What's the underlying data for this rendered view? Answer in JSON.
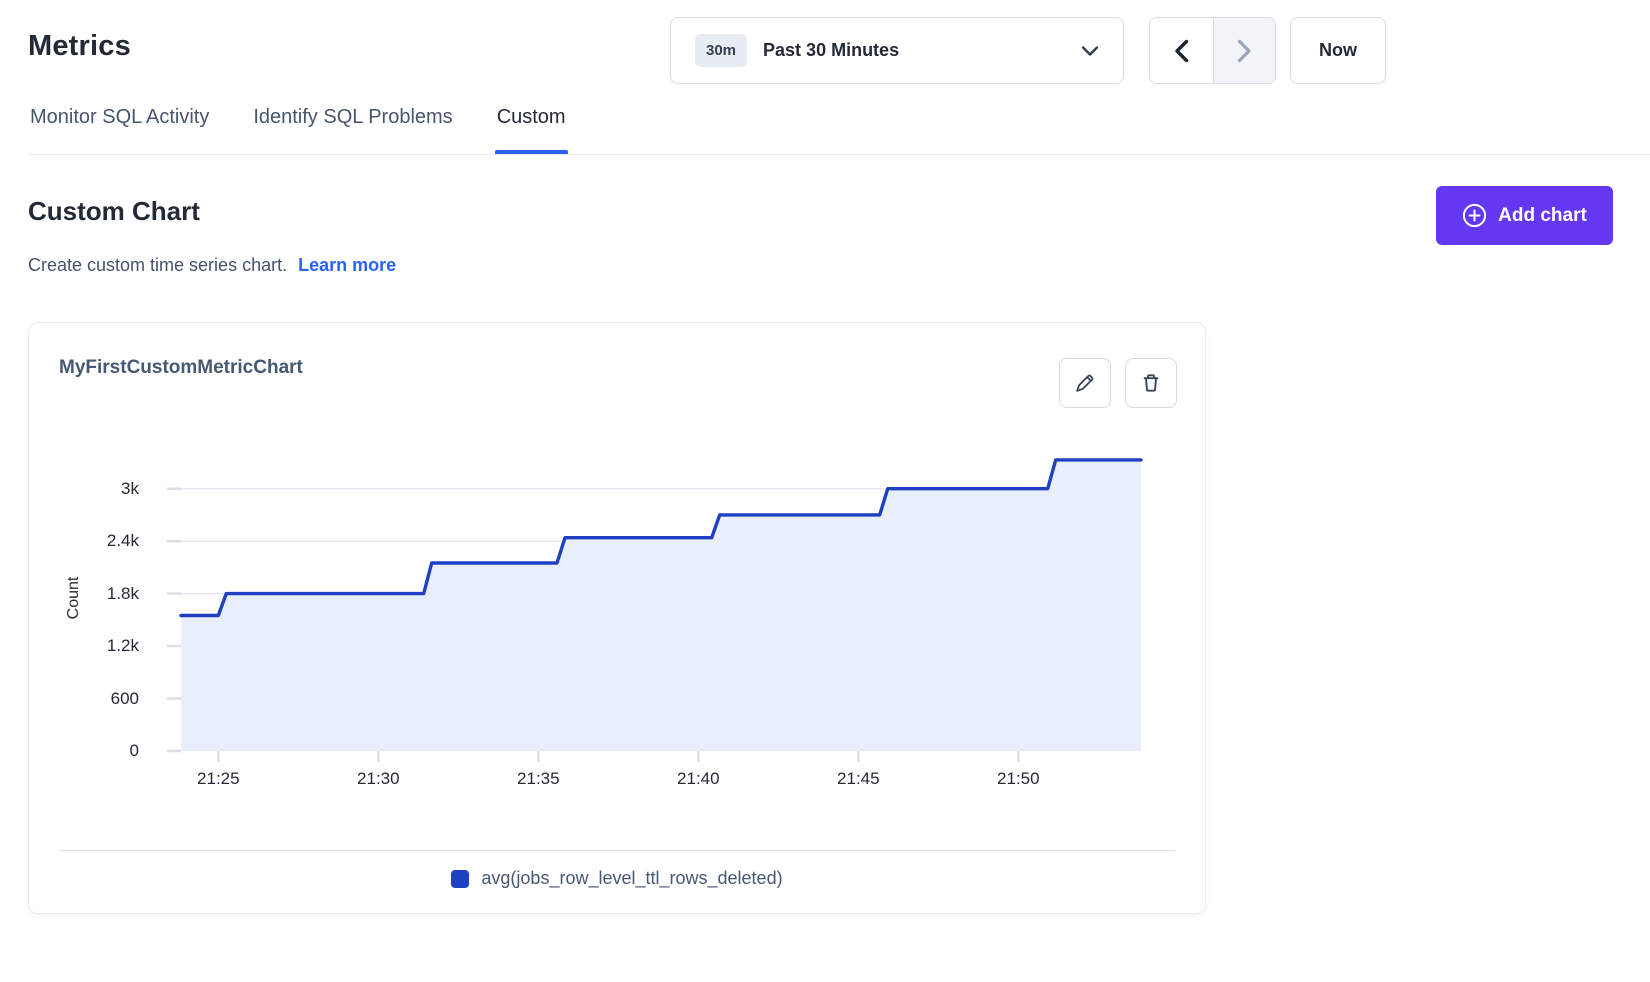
{
  "header": {
    "title": "Metrics"
  },
  "time_controls": {
    "range_badge": "30m",
    "range_label": "Past 30 Minutes",
    "now_label": "Now",
    "prev_enabled": true,
    "next_enabled": false
  },
  "tabs": [
    {
      "label": "Monitor SQL Activity",
      "active": false
    },
    {
      "label": "Identify SQL Problems",
      "active": false
    },
    {
      "label": "Custom",
      "active": true
    }
  ],
  "section": {
    "title": "Custom Chart",
    "subtitle": "Create custom time series chart.",
    "learn_more_label": "Learn more",
    "add_chart_label": "Add chart"
  },
  "chart_card": {
    "title": "MyFirstCustomMetricChart"
  },
  "colors": {
    "accent_purple": "#6438f0",
    "link_blue": "#2962ff",
    "series_line": "#1e40c2",
    "series_fill": "#e9eefb",
    "gridline": "#e3e7f0",
    "tick": "#d9dee8"
  },
  "chart_data": {
    "type": "area",
    "subtype": "step-line-with-fill",
    "title": "MyFirstCustomMetricChart",
    "xlabel": "",
    "ylabel": "Count",
    "x_start": "21:23:50",
    "x_end": "21:53:50",
    "x_ticks": [
      "21:25",
      "21:30",
      "21:35",
      "21:40",
      "21:45",
      "21:50"
    ],
    "y_ticks": [
      0,
      600,
      1200,
      1800,
      2400,
      3000
    ],
    "y_tick_labels": [
      "0",
      "600",
      "1.2k",
      "1.8k",
      "2.4k",
      "3k"
    ],
    "ylim": [
      0,
      3500
    ],
    "grid": "horizontal",
    "legend_position": "bottom",
    "series": [
      {
        "name": "avg(jobs_row_level_ttl_rows_deleted)",
        "color": "#1e40c2",
        "fill": "#e9eefb",
        "points": [
          {
            "t": "21:23:50",
            "v": 1550
          },
          {
            "t": "21:25:00",
            "v": 1550
          },
          {
            "t": "21:25:15",
            "v": 1800
          },
          {
            "t": "21:31:25",
            "v": 1800
          },
          {
            "t": "21:31:40",
            "v": 2150
          },
          {
            "t": "21:35:35",
            "v": 2150
          },
          {
            "t": "21:35:50",
            "v": 2440
          },
          {
            "t": "21:40:25",
            "v": 2440
          },
          {
            "t": "21:40:40",
            "v": 2700
          },
          {
            "t": "21:45:40",
            "v": 2700
          },
          {
            "t": "21:45:55",
            "v": 3000
          },
          {
            "t": "21:50:55",
            "v": 3000
          },
          {
            "t": "21:51:10",
            "v": 3330
          },
          {
            "t": "21:53:50",
            "v": 3330
          }
        ]
      }
    ]
  }
}
